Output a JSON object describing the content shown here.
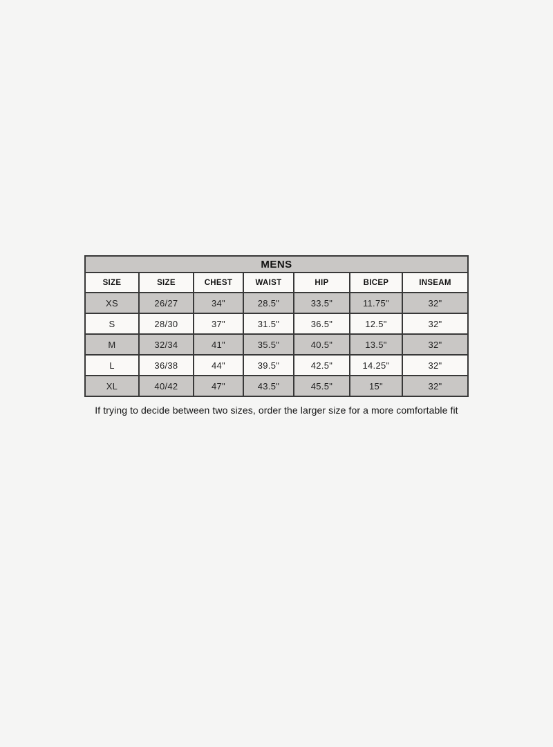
{
  "page": {
    "background_color": "#f5f5f4"
  },
  "size_chart": {
    "title": "MENS",
    "columns": [
      "SIZE",
      "SIZE",
      "CHEST",
      "WAIST",
      "HIP",
      "BICEP",
      "INSEAM"
    ],
    "rows": [
      [
        "XS",
        "26/27",
        "34\"",
        "28.5\"",
        "33.5\"",
        "11.75\"",
        "32\""
      ],
      [
        "S",
        "28/30",
        "37\"",
        "31.5\"",
        "36.5\"",
        "12.5\"",
        "32\""
      ],
      [
        "M",
        "32/34",
        "41\"",
        "35.5\"",
        "40.5\"",
        "13.5\"",
        "32\""
      ],
      [
        "L",
        "36/38",
        "44\"",
        "39.5\"",
        "42.5\"",
        "14.25\"",
        "32\""
      ],
      [
        "XL",
        "40/42",
        "47\"",
        "43.5\"",
        "45.5\"",
        "15\"",
        "32\""
      ]
    ],
    "note": "If trying to decide between two sizes, order the larger size for a more comfortable fit",
    "colors": {
      "shaded_row": "#c9c7c5",
      "plain_row": "#faf9f7",
      "border": "#383838",
      "text": "#1f1f1f"
    }
  },
  "chart_data": {
    "type": "table",
    "title": "MENS",
    "columns": [
      "SIZE",
      "SIZE",
      "CHEST",
      "WAIST",
      "HIP",
      "BICEP",
      "INSEAM"
    ],
    "rows": [
      {
        "size_label": "XS",
        "size_number": "26/27",
        "chest_in": 34,
        "waist_in": 28.5,
        "hip_in": 33.5,
        "bicep_in": 11.75,
        "inseam_in": 32
      },
      {
        "size_label": "S",
        "size_number": "28/30",
        "chest_in": 37,
        "waist_in": 31.5,
        "hip_in": 36.5,
        "bicep_in": 12.5,
        "inseam_in": 32
      },
      {
        "size_label": "M",
        "size_number": "32/34",
        "chest_in": 41,
        "waist_in": 35.5,
        "hip_in": 40.5,
        "bicep_in": 13.5,
        "inseam_in": 32
      },
      {
        "size_label": "L",
        "size_number": "36/38",
        "chest_in": 44,
        "waist_in": 39.5,
        "hip_in": 42.5,
        "bicep_in": 14.25,
        "inseam_in": 32
      },
      {
        "size_label": "XL",
        "size_number": "40/42",
        "chest_in": 47,
        "waist_in": 43.5,
        "hip_in": 45.5,
        "bicep_in": 15,
        "inseam_in": 32
      }
    ],
    "units": "inches",
    "footnote": "If trying to decide between two sizes, order the larger size for a more comfortable fit"
  }
}
